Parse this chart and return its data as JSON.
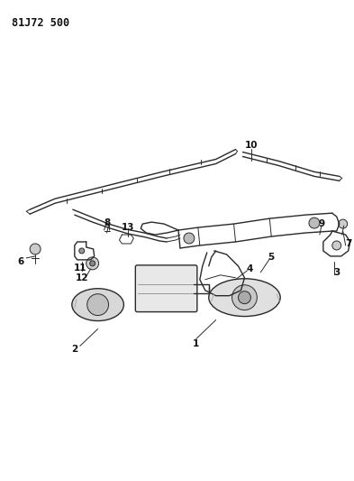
{
  "title": "81J72 500",
  "bg_color": "#ffffff",
  "line_color": "#2a2a2a",
  "label_color": "#111111",
  "title_fontsize": 8.5,
  "label_fontsize": 7.5,
  "fig_width": 3.93,
  "fig_height": 5.33,
  "dpi": 100
}
